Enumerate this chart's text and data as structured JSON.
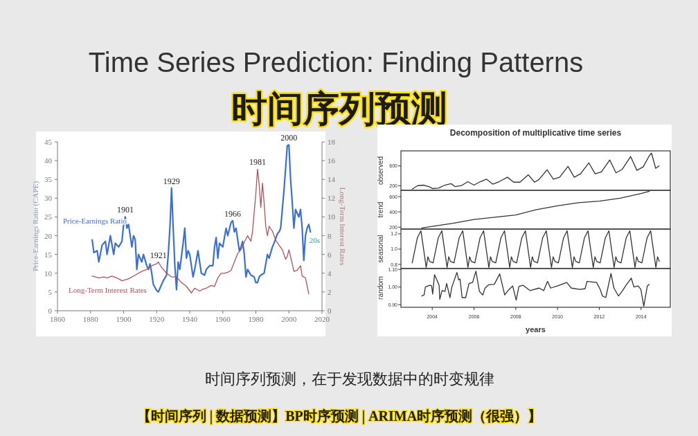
{
  "chart_data": [
    {
      "type": "other",
      "title": "Time Series Prediction: Finding Patterns",
      "subtitle": "时间序列预测",
      "annotations": [
        "时间序列预测，在于发现数据中的时变规律",
        "【时间序列 | 数据预测】BP时序预测 | ARIMA时序预测（很强）】"
      ]
    },
    {
      "type": "line",
      "xlim": [
        1860,
        2020
      ],
      "xticks": [
        1860,
        1880,
        1900,
        1920,
        1940,
        1960,
        1980,
        2000,
        2020
      ],
      "ylim": [
        0,
        45
      ],
      "yticks": [
        0,
        5,
        10,
        15,
        20,
        25,
        30,
        35,
        40,
        45
      ],
      "y2lim": [
        0,
        18
      ],
      "y2ticks": [
        0,
        2,
        4,
        6,
        8,
        10,
        12,
        14,
        16,
        18
      ],
      "ylabel": "Price-Earnings Ratio (CAPE)",
      "y2label": "Long-Term Interest Rates",
      "series": [
        {
          "name": "Price-Earnings Ratio",
          "color": "#3a6fd8",
          "x": [
            1881,
            1882,
            1884,
            1885,
            1887,
            1889,
            1890,
            1892,
            1894,
            1895,
            1897,
            1899,
            1900,
            1901,
            1902,
            1903,
            1905,
            1906,
            1907,
            1908,
            1909,
            1911,
            1912,
            1914,
            1915,
            1916,
            1917,
            1918,
            1920,
            1921,
            1922,
            1924,
            1926,
            1927,
            1928,
            1929,
            1930,
            1931,
            1932,
            1933,
            1934,
            1936,
            1937,
            1938,
            1939,
            1940,
            1941,
            1942,
            1943,
            1945,
            1946,
            1947,
            1949,
            1950,
            1952,
            1954,
            1955,
            1956,
            1957,
            1958,
            1960,
            1962,
            1963,
            1965,
            1966,
            1967,
            1968,
            1970,
            1971,
            1972,
            1973,
            1974,
            1975,
            1977,
            1979,
            1980,
            1981,
            1982,
            1983,
            1985,
            1987,
            1988,
            1990,
            1991,
            1993,
            1994,
            1995,
            1996,
            1997,
            1998,
            1999,
            2000,
            2001,
            2002,
            2003,
            2004,
            2005,
            2006,
            2007,
            2008,
            2009,
            2010,
            2011,
            2012,
            2013
          ],
          "values": [
            18.9,
            15.5,
            16,
            13,
            17.5,
            18.5,
            15,
            20,
            15,
            18,
            17,
            18.5,
            23,
            25,
            22,
            23,
            17,
            20,
            19,
            11,
            15,
            13,
            15,
            12,
            11,
            12.5,
            10,
            7,
            5.4,
            5,
            6,
            8,
            9.5,
            15,
            22,
            32.7,
            22,
            12,
            5.6,
            13,
            11,
            18,
            22,
            14,
            16,
            15,
            12,
            9,
            11,
            16,
            13,
            10,
            9.5,
            11,
            12,
            12,
            17,
            19.5,
            14,
            18,
            17,
            22,
            20,
            23.5,
            24,
            21,
            22,
            16,
            17,
            18.5,
            15,
            9,
            11,
            9.5,
            9,
            7.5,
            7.5,
            9,
            9.5,
            10,
            15,
            14,
            17,
            18,
            20.5,
            21,
            22,
            27,
            32,
            38,
            44,
            44.2,
            35,
            29,
            22,
            27,
            26,
            25,
            27,
            22,
            13.4,
            20,
            22,
            23,
            21
          ]
        },
        {
          "name": "Long-Term Interest Rates",
          "color": "#b5505a",
          "axis": "y2",
          "x": [
            1881,
            1885,
            1888,
            1890,
            1893,
            1897,
            1899,
            1903,
            1907,
            1911,
            1914,
            1917,
            1920,
            1921,
            1923,
            1926,
            1929,
            1932,
            1935,
            1938,
            1941,
            1943,
            1946,
            1948,
            1950,
            1953,
            1955,
            1957,
            1959,
            1961,
            1963,
            1965,
            1967,
            1969,
            1971,
            1973,
            1975,
            1977,
            1978,
            1980,
            1981,
            1982,
            1983,
            1984,
            1985,
            1986,
            1987,
            1988,
            1990,
            1992,
            1994,
            1996,
            1998,
            1999,
            2000,
            2002,
            2003,
            2005,
            2007,
            2008,
            2010,
            2012
          ],
          "values": [
            3.7,
            3.5,
            3.6,
            3.5,
            3.7,
            3.4,
            3.2,
            3.4,
            3.8,
            4.2,
            4.4,
            4.8,
            5.0,
            5.2,
            4.6,
            4.0,
            3.6,
            3.6,
            3.0,
            2.6,
            1.9,
            2.4,
            2.1,
            2.3,
            2.4,
            2.7,
            2.6,
            3.5,
            4.0,
            4.0,
            4.1,
            4.3,
            5.2,
            6.1,
            6.5,
            7.3,
            8.0,
            7.4,
            8.5,
            12.5,
            15.1,
            13.5,
            11,
            13.6,
            11.5,
            9,
            8,
            9,
            8.5,
            7.5,
            7,
            6.5,
            5.5,
            5.8,
            6.5,
            5.0,
            4.2,
            4.3,
            4.8,
            3.7,
            3.5,
            1.8
          ]
        }
      ],
      "annotations": [
        {
          "text": "1901",
          "x": 1901,
          "y": 25
        },
        {
          "text": "1921",
          "x": 1921,
          "y": 13
        },
        {
          "text": "1929",
          "x": 1929,
          "y": 32.7
        },
        {
          "text": "1966",
          "x": 1966,
          "y": 24
        },
        {
          "text": "1981",
          "x": 1981,
          "y": 37.8
        },
        {
          "text": "2000",
          "x": 2000,
          "y": 44.2
        },
        "20s"
      ]
    },
    {
      "type": "line",
      "title": "Decomposition of multiplicative time series",
      "ylabel": "observed",
      "xlim": [
        2002.5,
        2015.4
      ],
      "ylim": [
        105,
        905
      ],
      "yticks": [
        200,
        600
      ],
      "tick_labels": "y",
      "series": [
        {
          "color": "#333333",
          "x": [
            2003.04,
            2003.3,
            2003.6,
            2003.9,
            2004.0,
            2004.3,
            2004.6,
            2004.9,
            2005.1,
            2005.4,
            2005.7,
            2006.0,
            2006.3,
            2006.6,
            2006.9,
            2007.2,
            2007.6,
            2007.9,
            2008.2,
            2008.6,
            2008.9,
            2009.1,
            2009.5,
            2009.8,
            2010.1,
            2010.5,
            2010.8,
            2011.1,
            2011.5,
            2011.8,
            2012.1,
            2012.5,
            2012.8,
            2013.1,
            2013.5,
            2013.8,
            2014.1,
            2014.4,
            2014.5,
            2014.7,
            2014.86
          ],
          "values": [
            130,
            200,
            210,
            170,
            140,
            150,
            210,
            240,
            180,
            200,
            280,
            210,
            280,
            330,
            230,
            280,
            370,
            270,
            270,
            420,
            270,
            320,
            520,
            330,
            370,
            590,
            370,
            440,
            660,
            440,
            480,
            720,
            460,
            530,
            790,
            510,
            580,
            810,
            860,
            550,
            600
          ]
        }
      ]
    },
    {
      "type": "line",
      "ylabel": "trend",
      "xlim": [
        2002.5,
        2015.4
      ],
      "ylim": [
        175,
        682
      ],
      "yticks": [
        200,
        400,
        600
      ],
      "tick_labels": "y",
      "series": [
        {
          "color": "#333333",
          "x": [
            2003.5,
            2004,
            2005,
            2006,
            2007,
            2008,
            2009,
            2010,
            2011,
            2012,
            2013,
            2014,
            2014.4
          ],
          "values": [
            190,
            210,
            250,
            300,
            330,
            360,
            430,
            480,
            520,
            540,
            580,
            640,
            670
          ]
        }
      ]
    },
    {
      "type": "line",
      "ylabel": "seasonal",
      "xlim": [
        2002.5,
        2015.4
      ],
      "ylim": [
        0.746,
        1.263
      ],
      "yticks": [
        0.8,
        {
          "value": 1,
          "label": "1.0"
        },
        1.2
      ],
      "tick_labels": "y",
      "series": [
        {
          "color": "#333333",
          "x": [
            2003.04,
            2003.29,
            2003.46,
            2003.71,
            2003.79,
            2003.87,
            2004.04,
            2004.29,
            2004.46,
            2004.71,
            2004.79,
            2004.87,
            2005.04,
            2005.29,
            2005.46,
            2005.71,
            2005.79,
            2005.87,
            2006.04,
            2006.29,
            2006.46,
            2006.71,
            2006.79,
            2006.87,
            2007.04,
            2007.29,
            2007.46,
            2007.71,
            2007.79,
            2007.87,
            2008.04,
            2008.29,
            2008.46,
            2008.71,
            2008.79,
            2008.87,
            2009.04,
            2009.29,
            2009.46,
            2009.71,
            2009.79,
            2009.87,
            2010.04,
            2010.29,
            2010.46,
            2010.71,
            2010.79,
            2010.87,
            2011.04,
            2011.29,
            2011.46,
            2011.71,
            2011.79,
            2011.87,
            2012.04,
            2012.29,
            2012.46,
            2012.71,
            2012.79,
            2012.87,
            2013.04,
            2013.29,
            2013.46,
            2013.71,
            2013.79,
            2013.87,
            2014.04,
            2014.29,
            2014.46,
            2014.71,
            2014.79,
            2014.87
          ],
          "values": [
            0.82,
            1.15,
            1.24,
            0.76,
            0.9,
            0.84,
            0.82,
            1.15,
            1.24,
            0.76,
            0.9,
            0.84,
            0.82,
            1.15,
            1.24,
            0.76,
            0.9,
            0.84,
            0.82,
            1.15,
            1.24,
            0.76,
            0.9,
            0.84,
            0.82,
            1.15,
            1.24,
            0.76,
            0.9,
            0.84,
            0.82,
            1.15,
            1.24,
            0.76,
            0.9,
            0.84,
            0.82,
            1.15,
            1.24,
            0.76,
            0.9,
            0.84,
            0.82,
            1.15,
            1.24,
            0.76,
            0.9,
            0.84,
            0.82,
            1.15,
            1.24,
            0.76,
            0.9,
            0.84,
            0.82,
            1.15,
            1.24,
            0.76,
            0.9,
            0.84,
            0.82,
            1.15,
            1.24,
            0.76,
            0.9,
            0.84,
            0.82,
            1.15,
            1.24,
            0.76,
            0.9,
            0.84
          ]
        }
      ]
    },
    {
      "type": "line",
      "ylabel": "random",
      "xlabel": "years",
      "xlim": [
        2002.5,
        2015.4
      ],
      "xticks": [
        2004,
        2006,
        2008,
        2010,
        2012,
        2014
      ],
      "ylim": [
        0.885,
        1.105
      ],
      "yticks": [
        {
          "value": 0.9,
          "label": "0.90"
        },
        {
          "value": 1,
          "label": "1.00"
        },
        {
          "value": 1.1,
          "label": "1.10"
        }
      ],
      "series": [
        {
          "color": "#333333",
          "x": [
            2003.5,
            2003.61,
            2003.67,
            2003.89,
            2003.97,
            2004.02,
            2004.11,
            2004.22,
            2004.33,
            2004.36,
            2004.47,
            2004.61,
            2004.69,
            2004.85,
            2004.94,
            2005.18,
            2005.27,
            2005.33,
            2005.43,
            2005.6,
            2005.76,
            2005.93,
            2006.09,
            2006.26,
            2006.42,
            2006.53,
            2006.7,
            2006.97,
            2007.23,
            2007.47,
            2007.63,
            2007.85,
            2008.02,
            2008.15,
            2008.35,
            2008.46,
            2008.68,
            2009.12,
            2009.34,
            2009.52,
            2009.67,
            2010.0,
            2010.44,
            2010.66,
            2011.05,
            2011.32,
            2011.41,
            2011.87,
            2012.04,
            2012.15,
            2012.31,
            2012.56,
            2012.7,
            2012.92,
            2013.09,
            2013.28,
            2013.53,
            2013.66,
            2013.86,
            2013.99,
            2014.13,
            2014.3,
            2014.39
          ],
          "values": [
            0.949,
            0.955,
            1.0,
            1.01,
            1.006,
            0.96,
            1.07,
            1.04,
            1.01,
            0.93,
            0.98,
            0.975,
            1.02,
            0.94,
            1.0,
            1.083,
            1.04,
            1.045,
            0.94,
            0.94,
            1.02,
            1.026,
            1.09,
            0.975,
            0.955,
            0.994,
            1.013,
            1.015,
            1.074,
            0.955,
            0.98,
            1.006,
            0.926,
            1.003,
            1.01,
            1.0,
            0.98,
            0.994,
            0.98,
            1.032,
            0.994,
            1.006,
            1.026,
            0.994,
            0.987,
            0.99,
            1.032,
            1.026,
            0.987,
            0.949,
            0.94,
            1.077,
            0.994,
            0.949,
            0.975,
            1.01,
            1.05,
            1.0,
            1.006,
            0.987,
            0.891,
            1.006,
            1.015
          ]
        }
      ]
    }
  ]
}
